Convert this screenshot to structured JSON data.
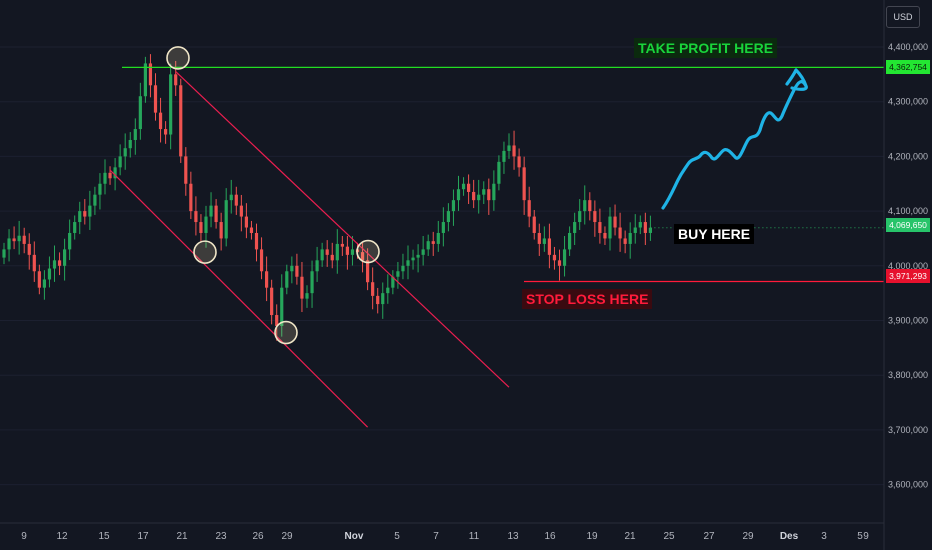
{
  "currency": "USD",
  "annotations": {
    "take_profit": "TAKE PROFIT HERE",
    "buy": "BUY HERE",
    "stop_loss": "STOP LOSS HERE"
  },
  "price_tags": {
    "take_profit": "4,362,754",
    "last": "4,069,650",
    "stop_loss": "3,971,293"
  },
  "colors": {
    "background": "#131722",
    "up": "#26a65b",
    "down": "#ef5350",
    "take_profit": "#22dd22",
    "stop_loss": "#ff1b3b",
    "channel": "#e91e4f",
    "projection": "#1fb3e6"
  },
  "chart_data": {
    "type": "candlestick",
    "y_ticks": [
      {
        "value": 4400000,
        "label": "4,400,000"
      },
      {
        "value": 4300000,
        "label": "4,300,000"
      },
      {
        "value": 4200000,
        "label": "4,200,000"
      },
      {
        "value": 4100000,
        "label": "4,100,000"
      },
      {
        "value": 4000000,
        "label": "4,000,000"
      },
      {
        "value": 3900000,
        "label": "3,900,000"
      },
      {
        "value": 3800000,
        "label": "3,800,000"
      },
      {
        "value": 3700000,
        "label": "3,700,000"
      },
      {
        "value": 3600000,
        "label": "3,600,000"
      }
    ],
    "ylim": [
      3530000,
      4460000
    ],
    "x_ticks": [
      "9",
      "12",
      "15",
      "17",
      "21",
      "23",
      "26",
      "29",
      "Nov",
      "5",
      "7",
      "11",
      "13",
      "16",
      "19",
      "21",
      "25",
      "27",
      "29",
      "Des",
      "3",
      "5",
      "9"
    ],
    "take_profit": 4362754,
    "stop_loss": 3971293,
    "last_price": 4069650,
    "closes": [
      4030000,
      4050000,
      4045000,
      4055000,
      4040000,
      4020000,
      3990000,
      3960000,
      3975000,
      3995000,
      4010000,
      4000000,
      4030000,
      4060000,
      4080000,
      4100000,
      4090000,
      4110000,
      4130000,
      4150000,
      4170000,
      4160000,
      4180000,
      4200000,
      4215000,
      4230000,
      4250000,
      4310000,
      4370000,
      4330000,
      4280000,
      4250000,
      4240000,
      4350000,
      4330000,
      4200000,
      4150000,
      4100000,
      4080000,
      4060000,
      4090000,
      4110000,
      4080000,
      4050000,
      4120000,
      4130000,
      4110000,
      4090000,
      4070000,
      4060000,
      4030000,
      3990000,
      3960000,
      3910000,
      3890000,
      3960000,
      3990000,
      4000000,
      3980000,
      3940000,
      3950000,
      3990000,
      4010000,
      4030000,
      4020000,
      4010000,
      4040000,
      4035000,
      4020000,
      4030000,
      4025000,
      4010000,
      3970000,
      3945000,
      3930000,
      3950000,
      3960000,
      3980000,
      3990000,
      4000000,
      4010000,
      4015000,
      4020000,
      4030000,
      4045000,
      4040000,
      4060000,
      4080000,
      4100000,
      4120000,
      4140000,
      4150000,
      4135000,
      4120000,
      4130000,
      4140000,
      4120000,
      4150000,
      4190000,
      4210000,
      4220000,
      4200000,
      4180000,
      4120000,
      4090000,
      4060000,
      4040000,
      4050000,
      4020000,
      4010000,
      4000000,
      4030000,
      4060000,
      4080000,
      4100000,
      4120000,
      4100000,
      4080000,
      4060000,
      4050000,
      4090000,
      4070000,
      4050000,
      4040000,
      4060000,
      4070000,
      4080000,
      4060000,
      4069650
    ],
    "marker_circles": [
      {
        "x": "20 Oct",
        "y": 4380000
      },
      {
        "x": "22 Oct",
        "y": 4025000
      },
      {
        "x": "28 Oct",
        "y": 3878000
      },
      {
        "x": "3 Nov",
        "y": 4026000
      }
    ],
    "channel_upper": [
      {
        "i": 34,
        "y": 4355000
      },
      {
        "i": 100,
        "y": 3778000
      }
    ],
    "channel_lower": [
      {
        "i": 21,
        "y": 4175000
      },
      {
        "i": 72,
        "y": 3705000
      }
    ]
  }
}
